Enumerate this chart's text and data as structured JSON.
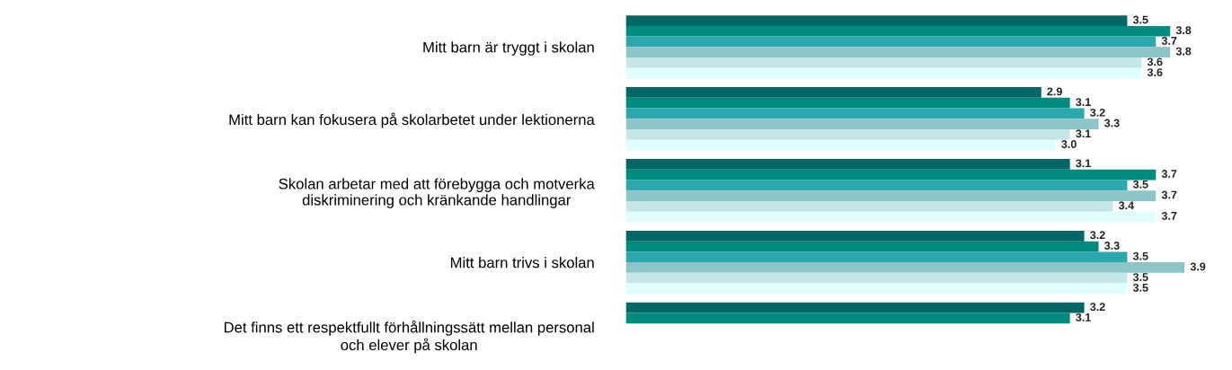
{
  "chart_data": {
    "type": "bar",
    "orientation": "horizontal",
    "categories": [
      "Mitt barn är tryggt i skolan",
      "Mitt barn kan fokusera på skolarbetet under lektionerna",
      "Skolan arbetar med att förebygga och motverka\ndiskriminering och kränkande handlingar",
      "Mitt barn trivs i skolan",
      "Det finns ett respektfullt förhållningssätt mellan personal\noch elever på skolan"
    ],
    "series": [
      {
        "color": "#006666",
        "values": [
          3.5,
          2.9,
          3.1,
          3.2,
          3.2
        ],
        "value_labels": [
          "3.5",
          "2.9",
          "3.1",
          "3.2",
          "3.2"
        ]
      },
      {
        "color": "#008a80",
        "values": [
          3.8,
          3.1,
          3.7,
          3.3,
          3.1
        ],
        "value_labels": [
          "3.8",
          "3.1",
          "3.7",
          "3.3",
          "3.1"
        ]
      },
      {
        "color": "#2aa8ae",
        "values": [
          3.7,
          3.2,
          3.5,
          3.5,
          null
        ],
        "value_labels": [
          "3.7",
          "3.2",
          "3.5",
          "3.5",
          null
        ]
      },
      {
        "color": "#8cc4c8",
        "values": [
          3.8,
          3.3,
          3.7,
          3.9,
          null
        ],
        "value_labels": [
          "3.8",
          "3.3",
          "3.7",
          "3.9",
          null
        ]
      },
      {
        "color": "#c4e6e8",
        "values": [
          3.6,
          3.1,
          3.4,
          3.5,
          null
        ],
        "value_labels": [
          "3.6",
          "3.1",
          "3.4",
          "3.5",
          null
        ]
      },
      {
        "color": "#e0ffff",
        "values": [
          3.6,
          3.0,
          3.7,
          3.5,
          null
        ],
        "value_labels": [
          "3.6",
          "3.0",
          "3.7",
          "3.5",
          null
        ]
      }
    ]
  }
}
